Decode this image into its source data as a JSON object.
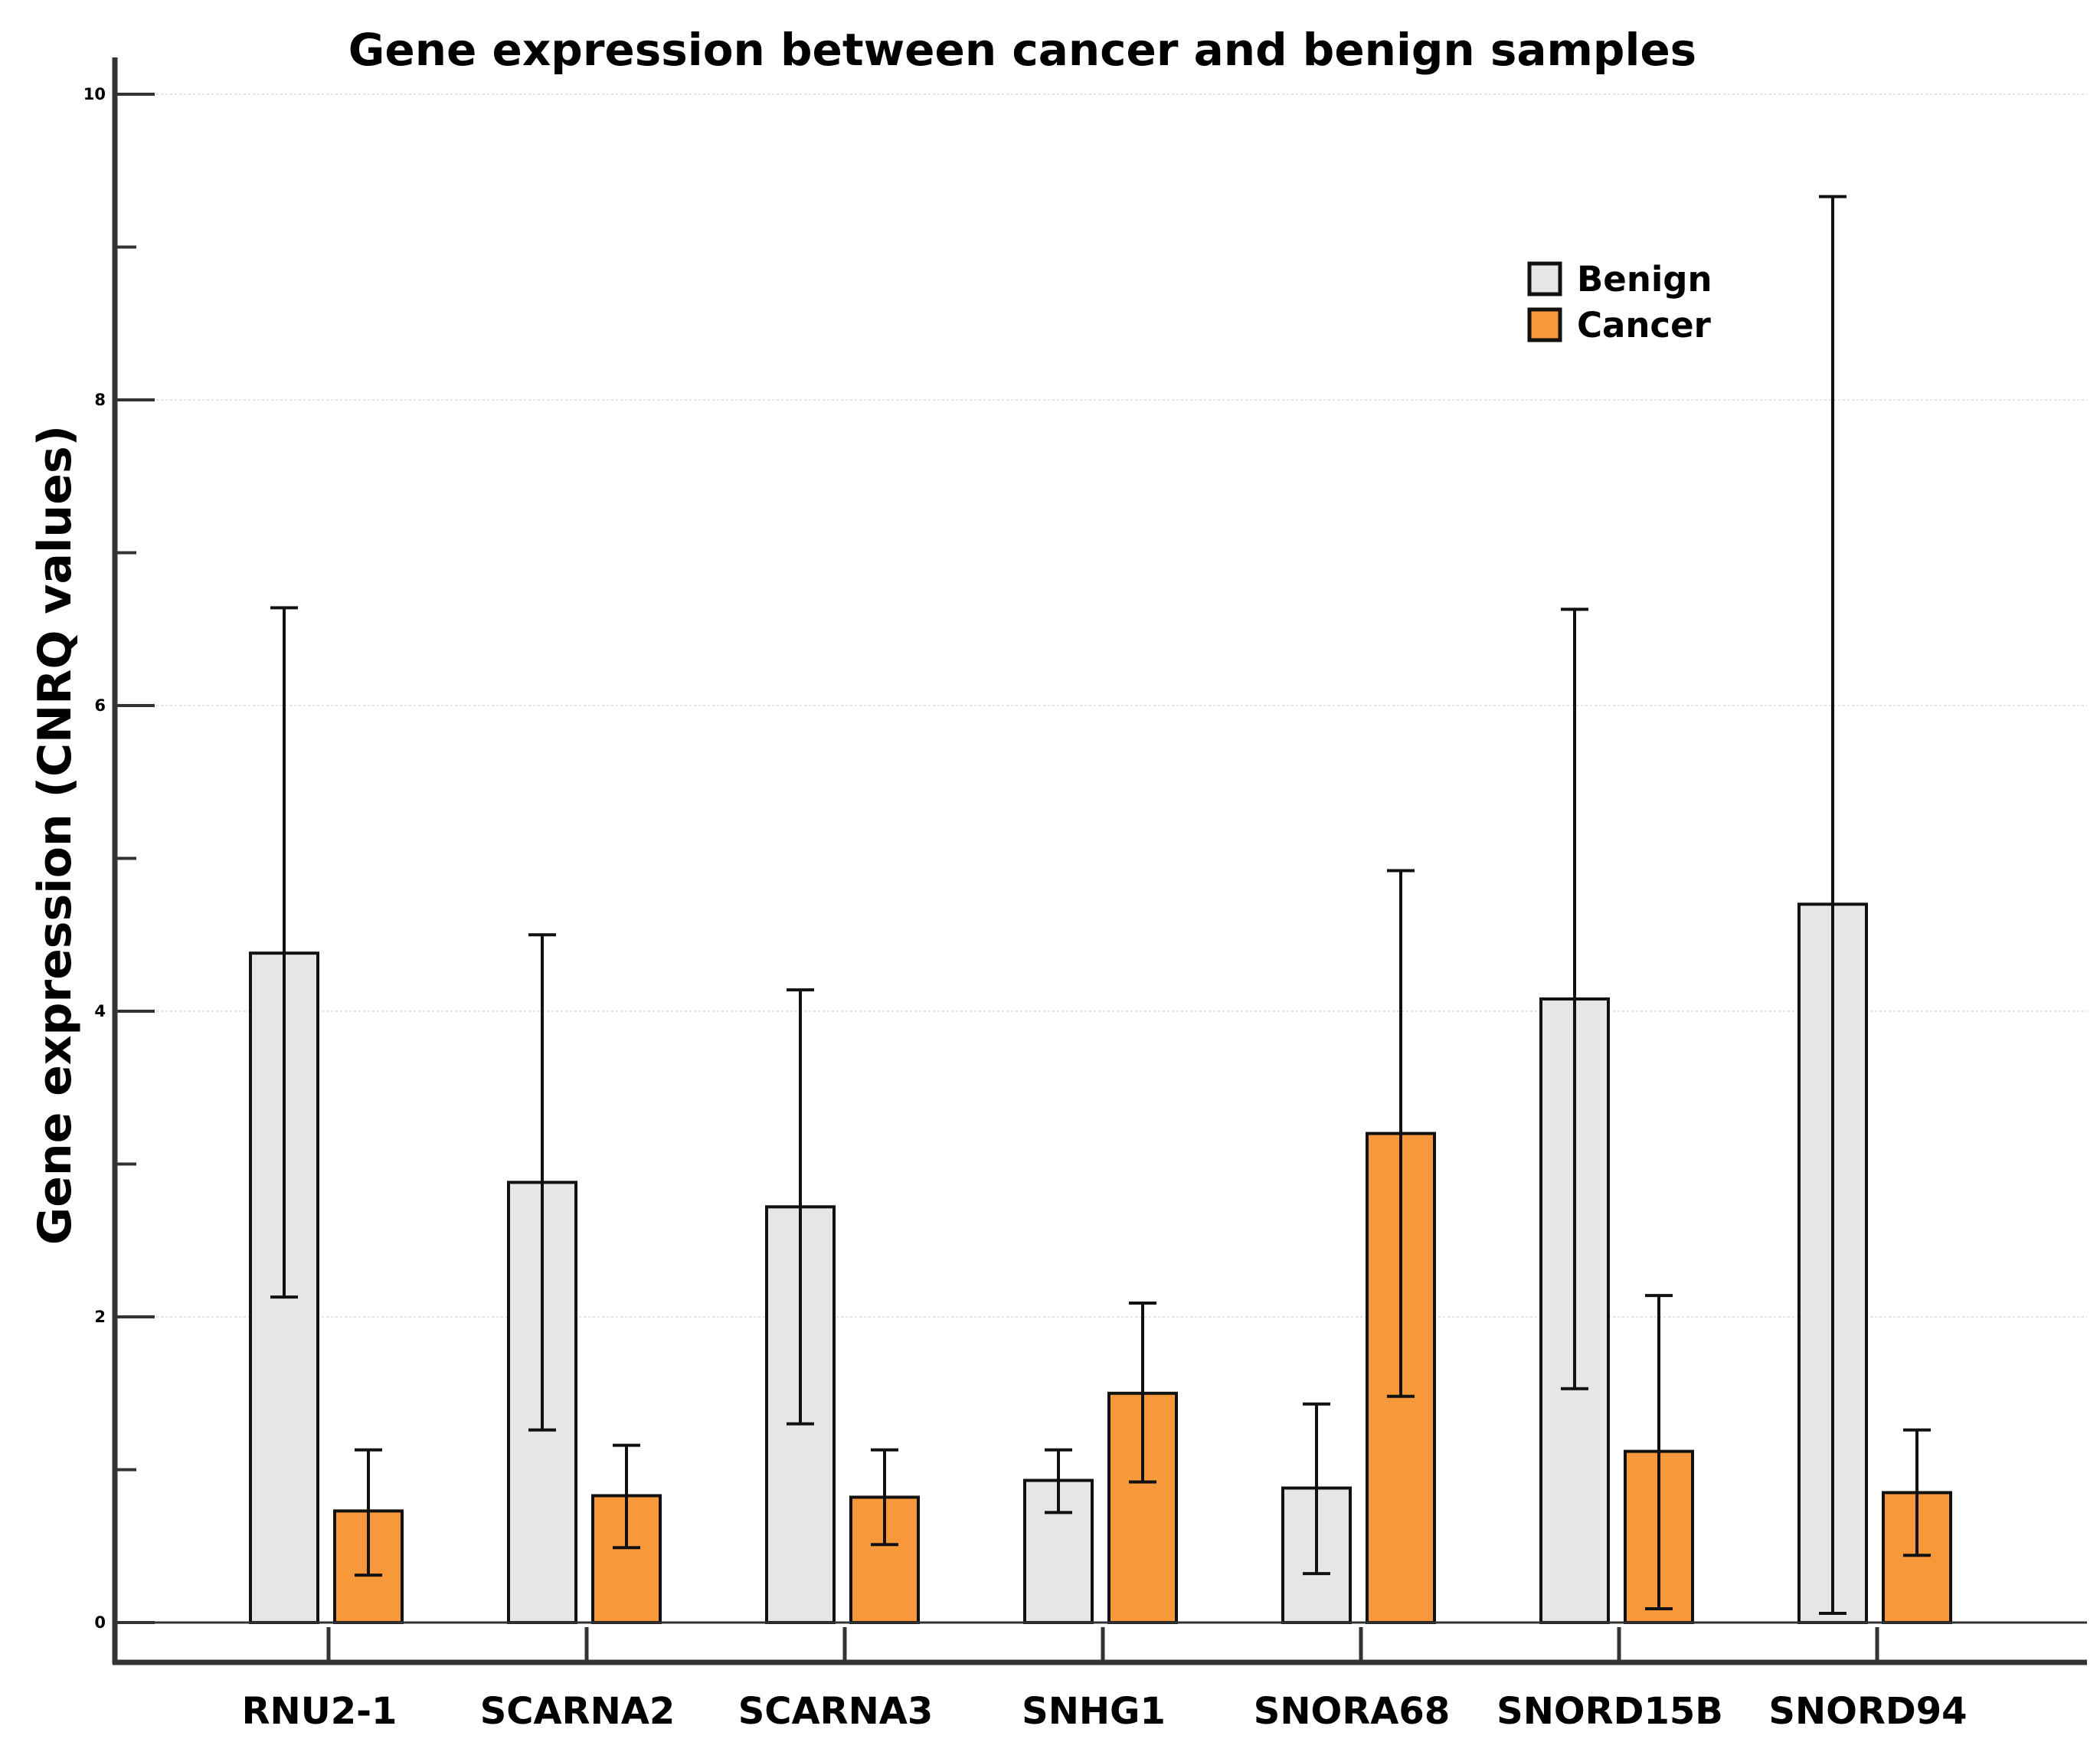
{
  "chart_data": {
    "type": "bar",
    "title": "Gene expression between cancer and benign samples",
    "xlabel": "",
    "ylabel": "Gene expression (CNRQ values)",
    "ylim": [
      0,
      10
    ],
    "yticks": [
      0,
      2,
      4,
      6,
      8,
      10
    ],
    "grid": true,
    "legend_position": "top-right",
    "categories": [
      "RNU2-1",
      "SCARNA2",
      "SCARNA3",
      "SNHG1",
      "SNORA68",
      "SNORD15B",
      "SNORD94"
    ],
    "series": [
      {
        "name": "Benign",
        "color": "#e6e6e6",
        "values": [
          4.38,
          2.88,
          2.72,
          0.93,
          0.88,
          4.08,
          4.7
        ],
        "error_low": [
          2.13,
          1.26,
          1.3,
          0.72,
          0.32,
          1.53,
          0.06
        ],
        "error_high": [
          6.64,
          4.5,
          4.14,
          1.13,
          1.43,
          6.63,
          9.33
        ]
      },
      {
        "name": "Cancer",
        "color": "#f7983a",
        "values": [
          0.73,
          0.83,
          0.82,
          1.5,
          3.2,
          1.12,
          0.85
        ],
        "error_low": [
          0.31,
          0.49,
          0.51,
          0.92,
          1.48,
          0.09,
          0.44
        ],
        "error_high": [
          1.13,
          1.16,
          1.13,
          2.09,
          4.92,
          2.14,
          1.26
        ]
      }
    ]
  }
}
